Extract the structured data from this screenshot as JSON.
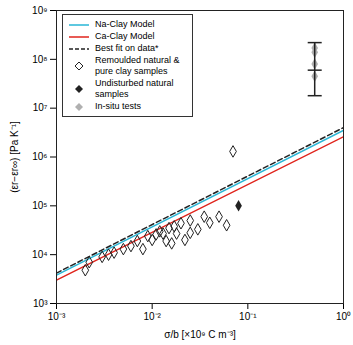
{
  "chart_data": {
    "type": "scatter",
    "x_label": "σ/b [×10⁹ C m⁻³]",
    "y_label": "(εr−εr∞) [Pa K⁻¹]",
    "log": true,
    "grid": false,
    "legend": "top-left",
    "xlim": [
      0.001,
      1
    ],
    "ylim": [
      1000,
      1000000000
    ],
    "xticks": [
      {
        "value": 0.001,
        "label": "10⁻³"
      },
      {
        "value": 0.01,
        "label": "10⁻²"
      },
      {
        "value": 0.1,
        "label": "10⁻¹"
      },
      {
        "value": 1,
        "label": "10⁰"
      }
    ],
    "yticks": [
      {
        "value": 1000,
        "label": "10³"
      },
      {
        "value": 10000,
        "label": "10⁴"
      },
      {
        "value": 100000,
        "label": "10⁵"
      },
      {
        "value": 1000000,
        "label": "10⁶"
      },
      {
        "value": 10000000,
        "label": "10⁷"
      },
      {
        "value": 100000000,
        "label": "10⁸"
      },
      {
        "value": 1000000000,
        "label": "10⁹"
      }
    ],
    "series": [
      {
        "name": "Na-Clay Model",
        "type": "line",
        "color": "#29b6d6",
        "line_style": "solid",
        "x": [
          0.001,
          1
        ],
        "values": [
          3800,
          3500000
        ]
      },
      {
        "name": "Ca-Clay Model",
        "type": "line",
        "color": "#e0241c",
        "line_style": "solid",
        "x": [
          0.001,
          1
        ],
        "values": [
          3000,
          2600000
        ]
      },
      {
        "name": "Best fit on data*",
        "type": "line",
        "color": "#222222",
        "line_style": "dashed",
        "x": [
          0.001,
          1
        ],
        "values": [
          4200,
          4000000
        ]
      },
      {
        "name": "Remoulded natural & pure clay samples",
        "type": "scatter",
        "color": "#222222",
        "marker": "diamond_open",
        "x": [
          0.002,
          0.0022,
          0.003,
          0.0035,
          0.004,
          0.005,
          0.006,
          0.007,
          0.008,
          0.009,
          0.01,
          0.011,
          0.012,
          0.013,
          0.014,
          0.015,
          0.016,
          0.017,
          0.018,
          0.02,
          0.022,
          0.025,
          0.025,
          0.03,
          0.035,
          0.04,
          0.05,
          0.06,
          0.07
        ],
        "values": [
          4800,
          7000,
          9000,
          10000,
          11000,
          13000,
          15000,
          19000,
          13000,
          24000,
          20000,
          26000,
          30000,
          27000,
          19000,
          35000,
          17000,
          38000,
          27000,
          44000,
          20000,
          50000,
          28000,
          33000,
          60000,
          45000,
          60000,
          40000,
          1300000
        ]
      },
      {
        "name": "Undisturbed natural samples",
        "type": "scatter",
        "color": "#222222",
        "marker": "diamond",
        "x": [
          0.08
        ],
        "values": [
          100000
        ]
      },
      {
        "name": "In-situ tests",
        "type": "scatter",
        "color": "#b0b0b0",
        "marker": "diamond",
        "x": [
          0.5,
          0.5,
          0.5,
          0.5
        ],
        "values": [
          170000000,
          140000000,
          80000000,
          45000000
        ]
      }
    ],
    "error_bars": [
      {
        "x": 0.5,
        "y": 60000000,
        "low": 18000000,
        "high": 220000000,
        "color": "#222222"
      }
    ]
  }
}
